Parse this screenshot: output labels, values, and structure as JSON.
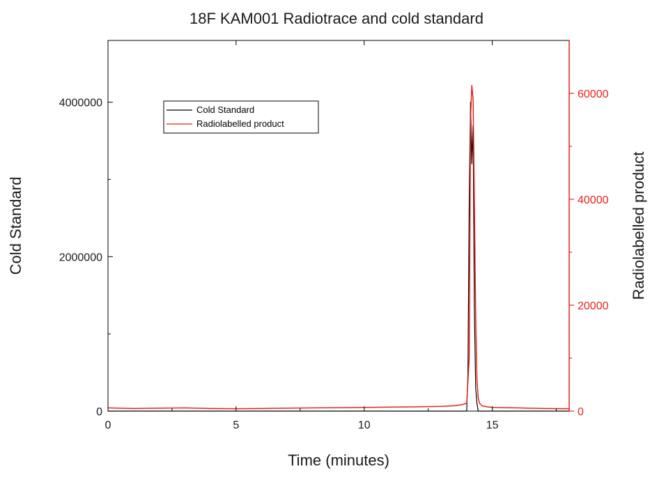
{
  "chart_data": {
    "type": "line",
    "title": "18F KAM001 Radiotrace and cold standard",
    "xlabel": "Time (minutes)",
    "ylabel_left": "Cold Standard",
    "ylabel_right": "Radiolabelled product",
    "xlim": [
      0,
      18
    ],
    "ylim_left": [
      0,
      4800000
    ],
    "ylim_right": [
      0,
      70000
    ],
    "x_ticks": [
      0,
      5,
      10,
      15
    ],
    "x_tick_labels": [
      "0",
      "5",
      "10",
      "15"
    ],
    "y_left_ticks": [
      0,
      2000000,
      4000000
    ],
    "y_left_tick_labels": [
      "0",
      "2000000",
      "4000000"
    ],
    "y_right_ticks": [
      0,
      20000,
      40000,
      60000
    ],
    "y_right_tick_labels": [
      "0",
      "20000",
      "40000",
      "60000"
    ],
    "grid": false,
    "legend_position": "top-left",
    "series": [
      {
        "name": "Cold Standard",
        "axis": "left",
        "color": "#000000",
        "x": [
          0,
          14.0,
          14.05,
          14.1,
          14.15,
          14.2,
          14.25,
          14.3,
          14.35,
          14.4,
          14.45,
          14.6,
          18
        ],
        "y": [
          0,
          0,
          500000,
          2800000,
          4000000,
          3200000,
          3700000,
          1300000,
          300000,
          100000,
          0,
          0,
          0
        ]
      },
      {
        "name": "Radiolabelled product",
        "axis": "right",
        "color": "#e8211c",
        "x": [
          0,
          1,
          2,
          3,
          4,
          5,
          6,
          7,
          8,
          9,
          10,
          11,
          12,
          13,
          13.5,
          13.8,
          14.0,
          14.1,
          14.15,
          14.2,
          14.25,
          14.3,
          14.35,
          14.4,
          14.45,
          14.5,
          14.6,
          14.8,
          15,
          16,
          17,
          18
        ],
        "y": [
          600,
          500,
          550,
          600,
          500,
          450,
          500,
          550,
          600,
          650,
          700,
          750,
          800,
          900,
          1000,
          1200,
          1500,
          10000,
          55000,
          61500,
          59000,
          40000,
          18000,
          6000,
          2500,
          1500,
          1000,
          800,
          700,
          600,
          500,
          450
        ]
      }
    ]
  }
}
